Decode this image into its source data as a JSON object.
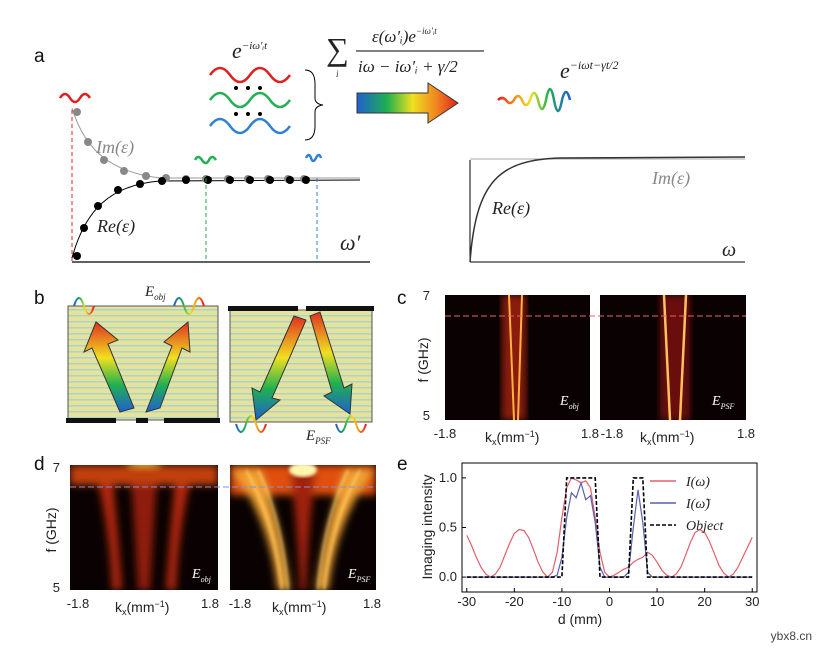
{
  "figure": {
    "panel_labels": [
      "a",
      "b",
      "c",
      "d",
      "e"
    ],
    "panel_a": {
      "wave_term": {
        "base": "e",
        "exp": "−iω′ᵢt"
      },
      "sum": {
        "symbol": "∑",
        "index": "i",
        "num_base": "ε(ω′ᵢ)e",
        "num_exp": "−iω′ᵢt",
        "den": "iω − iω′ᵢ + γ/2"
      },
      "result": {
        "base": "e",
        "exp": "−iωt−γt/2"
      },
      "im_label": "Im(ε)",
      "re_label": "Re(ε)",
      "x_label": "ω′",
      "right_im_label": "Im(ε)",
      "right_re_label": "Re(ε)",
      "right_x_label": "ω"
    },
    "panel_b": {
      "obj": {
        "base": "E",
        "sub": "obj"
      },
      "psf": {
        "base": "E",
        "sub": "PSF"
      }
    },
    "panel_c": {
      "yticks": [
        "7",
        "5"
      ],
      "y_label": "f (GHz)",
      "xticks": [
        "-1.8",
        "1.8"
      ],
      "x_label": {
        "base": "k",
        "sub": "x",
        "mid": "(mm",
        "sup": "−1",
        "end": ")"
      },
      "maps": [
        {
          "base": "E",
          "sub": "obj"
        },
        {
          "base": "E",
          "sub": "PSF"
        }
      ]
    },
    "panel_d": {
      "yticks": [
        "7",
        "5"
      ],
      "y_label": "f (GHz)",
      "xticks": [
        "-1.8",
        "1.8"
      ],
      "x_label": {
        "base": "k",
        "sub": "x",
        "mid": "(mm",
        "sup": "−1",
        "end": ")"
      },
      "maps": [
        {
          "base": "E",
          "sub": "obj"
        },
        {
          "base": "E",
          "sub": "PSF"
        }
      ]
    },
    "watermark": "ybx8.cn"
  },
  "chart_data": {
    "type": "line",
    "x_label": "d (mm)",
    "y_label": "Imaging intensity",
    "x": [
      -30,
      -29,
      -28,
      -27,
      -26,
      -25,
      -24,
      -23,
      -22,
      -21,
      -20,
      -19,
      -18,
      -17,
      -16,
      -15,
      -14,
      -13,
      -12,
      -11,
      -10,
      -9,
      -8,
      -7,
      -6,
      -5,
      -4,
      -3,
      -2,
      -1,
      0,
      1,
      2,
      3,
      4,
      5,
      6,
      7,
      8,
      9,
      10,
      11,
      12,
      13,
      14,
      15,
      16,
      17,
      18,
      19,
      20,
      21,
      22,
      23,
      24,
      25,
      26,
      27,
      28,
      29,
      30
    ],
    "series": [
      {
        "name": "I(ω)",
        "color": "#e0606a",
        "dash": false,
        "values": [
          0.42,
          0.32,
          0.2,
          0.1,
          0.03,
          0.0,
          0.03,
          0.1,
          0.22,
          0.34,
          0.44,
          0.48,
          0.47,
          0.4,
          0.28,
          0.15,
          0.05,
          0.0,
          0.05,
          0.25,
          0.6,
          0.9,
          1.0,
          0.98,
          0.95,
          0.97,
          0.9,
          0.6,
          0.25,
          0.05,
          0.0,
          0.02,
          0.05,
          0.08,
          0.1,
          0.15,
          0.18,
          0.2,
          0.25,
          0.22,
          0.15,
          0.07,
          0.02,
          0.0,
          0.03,
          0.1,
          0.22,
          0.35,
          0.45,
          0.48,
          0.45,
          0.36,
          0.24,
          0.12,
          0.04,
          0.0,
          0.03,
          0.1,
          0.2,
          0.3,
          0.4
        ]
      },
      {
        "name": "I(ω̃)",
        "color": "#5a5fb0",
        "dash": false,
        "values": [
          0,
          0,
          0,
          0,
          0,
          0,
          0,
          0,
          0,
          0,
          0,
          0,
          0,
          0,
          0,
          0,
          0,
          0,
          0,
          0.02,
          0.2,
          0.6,
          0.85,
          0.8,
          0.95,
          0.78,
          0.82,
          0.55,
          0.1,
          0,
          0,
          0,
          0,
          0,
          0.05,
          0.5,
          0.88,
          0.55,
          0.05,
          0,
          0,
          0,
          0,
          0,
          0,
          0,
          0,
          0,
          0,
          0,
          0,
          0,
          0,
          0,
          0,
          0,
          0,
          0,
          0,
          0,
          0
        ]
      },
      {
        "name": "Object",
        "color": "#000000",
        "dash": true,
        "values": [
          0,
          0,
          0,
          0,
          0,
          0,
          0,
          0,
          0,
          0,
          0,
          0,
          0,
          0,
          0,
          0,
          0,
          0,
          0,
          0,
          0,
          1,
          1,
          1,
          1,
          1,
          1,
          1,
          0,
          0,
          0,
          0,
          0,
          0,
          0,
          1,
          1,
          1,
          0,
          0,
          0,
          0,
          0,
          0,
          0,
          0,
          0,
          0,
          0,
          0,
          0,
          0,
          0,
          0,
          0,
          0,
          0,
          0,
          0,
          0,
          0
        ]
      }
    ],
    "xlim": [
      -31,
      31
    ],
    "xticks": [
      -30,
      -20,
      -10,
      0,
      10,
      20,
      30
    ],
    "ylim": [
      -0.15,
      1.15
    ],
    "yticks": [
      {
        "value": 0,
        "label": "0.0"
      },
      {
        "value": 0.5,
        "label": "0.5"
      },
      {
        "value": 1,
        "label": "1.0"
      }
    ],
    "legend": "upper right"
  }
}
